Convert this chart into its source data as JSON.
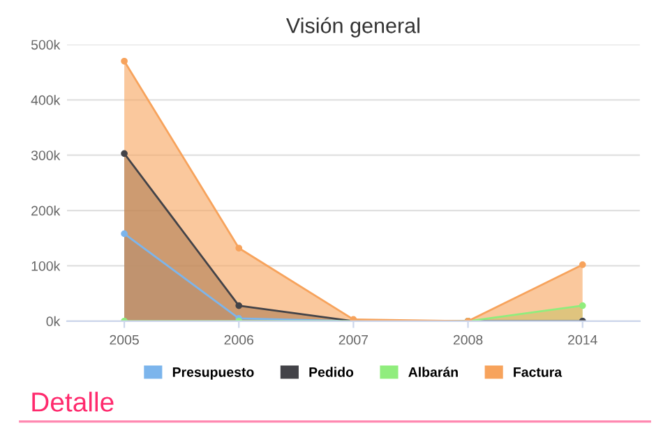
{
  "chart_data": {
    "type": "area",
    "title": "Visión general",
    "categories": [
      "2005",
      "2006",
      "2007",
      "2008",
      "2014"
    ],
    "series": [
      {
        "name": "Presupuesto",
        "color": "#7cb5ec",
        "values": [
          158000,
          5000,
          0,
          0,
          0
        ]
      },
      {
        "name": "Pedido",
        "color": "#434348",
        "values": [
          303000,
          28000,
          0,
          0,
          0
        ]
      },
      {
        "name": "Albarán",
        "color": "#90ed7d",
        "values": [
          0,
          0,
          0,
          0,
          28000
        ]
      },
      {
        "name": "Factura",
        "color": "#f7a35c",
        "values": [
          470000,
          132000,
          3000,
          0,
          102000
        ]
      }
    ],
    "ylim": [
      0,
      500000
    ],
    "yticks": [
      {
        "value": 0,
        "label": "0k"
      },
      {
        "value": 100000,
        "label": "100k"
      },
      {
        "value": 200000,
        "label": "200k"
      },
      {
        "value": 300000,
        "label": "300k"
      },
      {
        "value": 400000,
        "label": "400k"
      },
      {
        "value": 500000,
        "label": "500k"
      }
    ],
    "grid": "y",
    "legend": "bottom",
    "marker": "circle",
    "annotations": [
      "Detalle"
    ]
  }
}
